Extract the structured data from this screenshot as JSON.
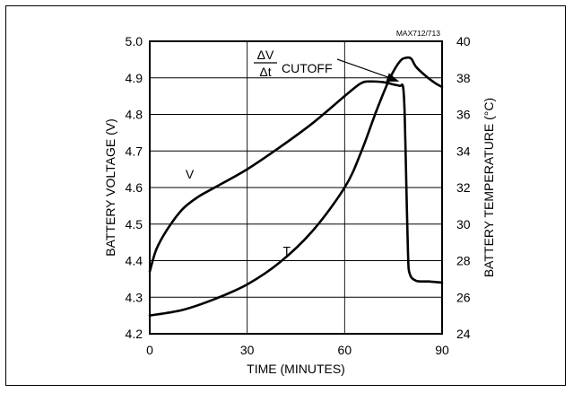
{
  "chart_data": {
    "type": "line",
    "figure_id": "MAX712/713",
    "xlabel": "TIME (MINUTES)",
    "ylabel_left": "BATTERY VOLTAGE (V)",
    "ylabel_right": "BATTERY TEMPERATURE (°C)",
    "xlim": [
      0,
      90
    ],
    "ylim_left": [
      4.2,
      5.0
    ],
    "ylim_right": [
      24,
      40
    ],
    "xticks": [
      0,
      30,
      60,
      90
    ],
    "yticks_left": [
      "4.2",
      "4.3",
      "4.4",
      "4.5",
      "4.6",
      "4.7",
      "4.8",
      "4.9",
      "5.0"
    ],
    "yticks_right": [
      "24",
      "26",
      "28",
      "30",
      "32",
      "34",
      "36",
      "38",
      "40"
    ],
    "grid": true,
    "series": [
      {
        "name": "V",
        "axis": "left",
        "x": [
          0,
          2,
          5,
          10,
          15,
          20,
          30,
          40,
          50,
          60,
          65,
          68,
          72,
          75,
          77,
          78,
          78.5,
          79,
          79.5,
          80,
          82,
          86,
          90
        ],
        "y": [
          4.37,
          4.43,
          4.48,
          4.54,
          4.575,
          4.6,
          4.65,
          4.71,
          4.775,
          4.85,
          4.885,
          4.89,
          4.888,
          4.882,
          4.878,
          4.875,
          4.8,
          4.6,
          4.42,
          4.365,
          4.345,
          4.343,
          4.34
        ]
      },
      {
        "name": "T",
        "axis": "right",
        "x": [
          0,
          10,
          20,
          30,
          40,
          50,
          60,
          65,
          70,
          74,
          77,
          79,
          80.5,
          82,
          85,
          88,
          90
        ],
        "y": [
          25.0,
          25.3,
          25.9,
          26.7,
          27.9,
          29.6,
          32.0,
          33.9,
          36.3,
          38.0,
          38.9,
          39.1,
          39.05,
          38.6,
          38.1,
          37.7,
          37.5
        ]
      }
    ],
    "annotations": [
      {
        "text_num": "ΔV",
        "text_den": "Δt",
        "text": "CUTOFF",
        "x": 76,
        "y": 4.88
      }
    ]
  }
}
